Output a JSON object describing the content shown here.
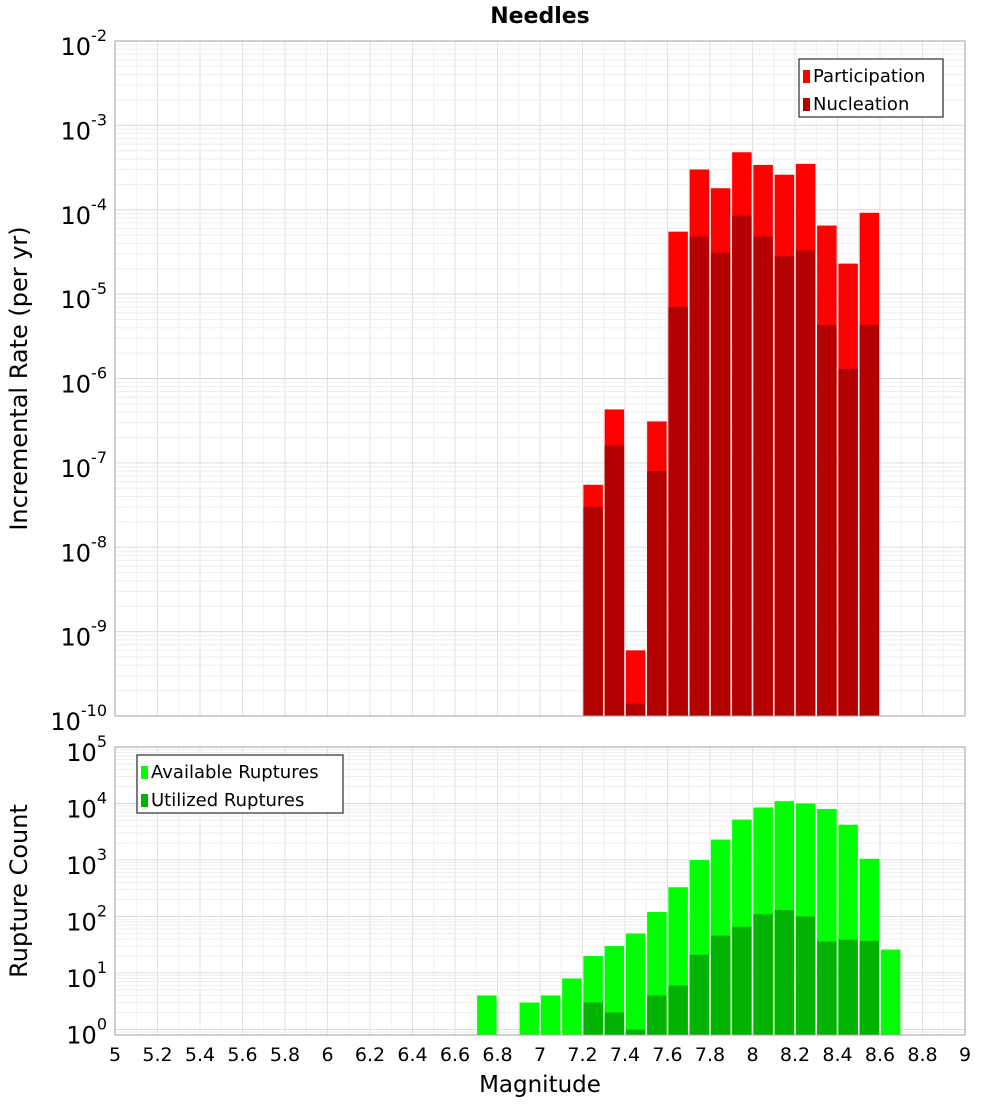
{
  "chart_data": [
    {
      "type": "bar",
      "title": "Needles",
      "ylabel": "Incremental Rate (per yr)",
      "xlabel": "",
      "y_scale": "log",
      "ylim": [
        1e-10,
        0.01
      ],
      "xlim": [
        5,
        9
      ],
      "grid": true,
      "legend_position": "top-right",
      "y_tick_exponents": [
        "-10",
        "-9",
        "-8",
        "-7",
        "-6",
        "-5",
        "-4",
        "-3",
        "-2"
      ],
      "series": [
        {
          "name": "Participation",
          "color": "#ff0000",
          "x": [
            7.25,
            7.35,
            7.45,
            7.55,
            7.65,
            7.75,
            7.85,
            7.95,
            8.05,
            8.15,
            8.25,
            8.35,
            8.45,
            8.55
          ],
          "values": [
            5.5e-08,
            4.3e-07,
            6e-10,
            3.1e-07,
            5.5e-05,
            0.0003,
            0.00018,
            0.00048,
            0.00034,
            0.00026,
            0.00035,
            6.5e-05,
            2.3e-05,
            9.2e-05
          ]
        },
        {
          "name": "Nucleation",
          "color": "#b30000",
          "x": [
            7.25,
            7.35,
            7.45,
            7.55,
            7.65,
            7.75,
            7.85,
            7.95,
            8.05,
            8.15,
            8.25,
            8.35,
            8.45,
            8.55
          ],
          "values": [
            3e-08,
            1.6e-07,
            1.4e-10,
            8e-08,
            7e-06,
            4.8e-05,
            3.1e-05,
            8.5e-05,
            4.8e-05,
            2.8e-05,
            3.3e-05,
            4.3e-06,
            1.3e-06,
            4.3e-06
          ]
        }
      ]
    },
    {
      "type": "bar",
      "title": "",
      "ylabel": "Rupture Count",
      "xlabel": "Magnitude",
      "y_scale": "log",
      "ylim": [
        0.8,
        100000.0
      ],
      "xlim": [
        5,
        9
      ],
      "grid": true,
      "legend_position": "top-left",
      "y_tick_exponents": [
        "0",
        "1",
        "2",
        "3",
        "4",
        "5"
      ],
      "x_ticks": [
        "5",
        "5.2",
        "5.4",
        "5.6",
        "5.8",
        "6",
        "6.2",
        "6.4",
        "6.6",
        "6.8",
        "7",
        "7.2",
        "7.4",
        "7.6",
        "7.8",
        "8",
        "8.2",
        "8.4",
        "8.6",
        "8.8",
        "9"
      ],
      "series": [
        {
          "name": "Available Ruptures",
          "color": "#00ff00",
          "x": [
            6.75,
            6.95,
            7.05,
            7.15,
            7.25,
            7.35,
            7.45,
            7.55,
            7.65,
            7.75,
            7.85,
            7.95,
            8.05,
            8.15,
            8.25,
            8.35,
            8.45,
            8.55,
            8.65
          ],
          "values": [
            4,
            3,
            4,
            8,
            20,
            30,
            50,
            120,
            330,
            1000,
            2300,
            5200,
            8500,
            11000,
            10000,
            8000,
            4200,
            1050,
            26
          ]
        },
        {
          "name": "Utilized Ruptures",
          "color": "#00b300",
          "x": [
            7.25,
            7.35,
            7.45,
            7.55,
            7.65,
            7.75,
            7.85,
            7.95,
            8.05,
            8.15,
            8.25,
            8.35,
            8.45,
            8.55
          ],
          "values": [
            3,
            2,
            1,
            4,
            6,
            21,
            46,
            66,
            110,
            130,
            100,
            36,
            39,
            37
          ]
        }
      ]
    }
  ]
}
